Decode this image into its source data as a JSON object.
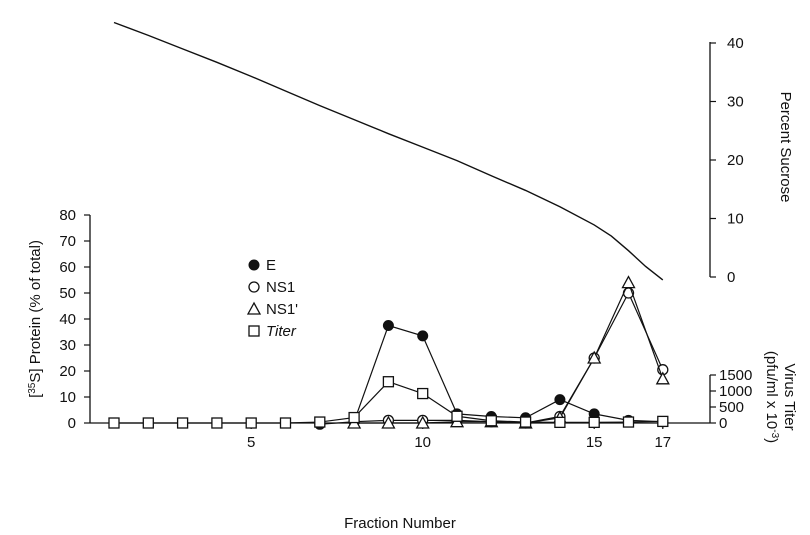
{
  "chart_data": {
    "type": "line",
    "xlabel": "Fraction Number",
    "x_ticks": [
      5,
      10,
      15,
      17
    ],
    "x_range": [
      1,
      17
    ],
    "left_axis": {
      "label_prefix": "[",
      "label_sup": "35",
      "label_suffix": "S] Protein (% of total)",
      "range": [
        0,
        80
      ],
      "ticks": [
        0,
        10,
        20,
        30,
        40,
        50,
        60,
        70,
        80
      ]
    },
    "right_top_axis": {
      "label": "Percent Sucrose",
      "range": [
        0,
        40
      ],
      "ticks": [
        0,
        10,
        20,
        30,
        40
      ]
    },
    "right_bottom_axis": {
      "label_line1": "Virus Titer",
      "label_line2_prefix": "(pfu/ml x 10",
      "label_line2_sup": "-3",
      "label_line2_suffix": ")",
      "range": [
        0,
        1500
      ],
      "ticks": [
        0,
        500,
        1000,
        1500
      ]
    },
    "legend": [
      {
        "marker": "filled-circle",
        "label": "E"
      },
      {
        "marker": "open-circle",
        "label": "NS1"
      },
      {
        "marker": "open-triangle",
        "label": "NS1'"
      },
      {
        "marker": "open-square",
        "label": "Titer",
        "italic": true
      }
    ],
    "sucrose": {
      "x": [
        1,
        2,
        3,
        4,
        5,
        6,
        7,
        8,
        9,
        10,
        11,
        12,
        13,
        14,
        15,
        15.5,
        16,
        16.5,
        17
      ],
      "values": [
        43.5,
        41.3,
        39.0,
        36.7,
        34.3,
        31.8,
        29.3,
        26.9,
        24.5,
        22.2,
        19.9,
        17.3,
        14.8,
        12.0,
        8.9,
        7.0,
        4.5,
        1.8,
        -0.5
      ]
    },
    "series": [
      {
        "name": "E",
        "marker": "filled-circle",
        "x": [
          7,
          8,
          9,
          10,
          11,
          12,
          13,
          14,
          15,
          16,
          17
        ],
        "values": [
          -0.5,
          0.5,
          37.5,
          33.5,
          3.5,
          2.5,
          2,
          9,
          3.5,
          1,
          0.5
        ]
      },
      {
        "name": "NS1",
        "marker": "open-circle",
        "x": [
          8,
          9,
          10,
          11,
          12,
          13,
          14,
          15,
          16,
          17
        ],
        "values": [
          0.5,
          1,
          1,
          1,
          0.5,
          0,
          2.5,
          25,
          50,
          20.5
        ]
      },
      {
        "name": "NS1'",
        "marker": "open-triangle",
        "x": [
          8,
          9,
          10,
          11,
          12,
          13,
          14,
          15,
          16,
          17
        ],
        "values": [
          0,
          0,
          0,
          0.5,
          0.5,
          0,
          2,
          25,
          54,
          17
        ]
      },
      {
        "name": "Titer",
        "marker": "open-square",
        "axis": "right_bottom",
        "x": [
          1,
          2,
          3,
          4,
          5,
          6,
          7,
          8,
          9,
          10,
          11,
          12,
          13,
          14,
          15,
          16,
          17
        ],
        "values": [
          0,
          0,
          0,
          0,
          0,
          0,
          30,
          170,
          1290,
          920,
          210,
          70,
          30,
          20,
          20,
          30,
          50
        ]
      }
    ]
  }
}
